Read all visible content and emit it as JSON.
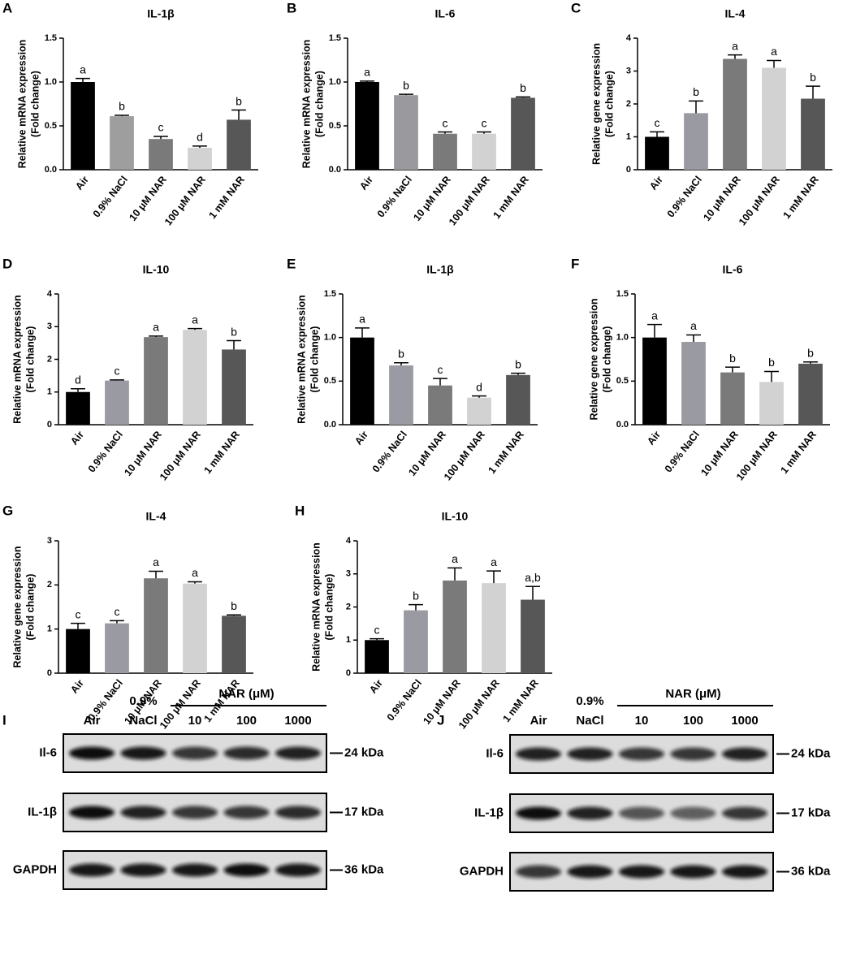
{
  "chart_data": [
    {
      "type": "bar",
      "panel": "A",
      "title": "IL-1β",
      "ylabel": [
        "Relative mRNA expression",
        "(Fold change)"
      ],
      "categories": [
        "Air",
        "0.9% NaCl",
        "10 μM NAR",
        "100 μM NAR",
        "1 mM NAR"
      ],
      "values": [
        1.0,
        0.61,
        0.35,
        0.25,
        0.57
      ],
      "errors": [
        0.04,
        0.01,
        0.03,
        0.02,
        0.11
      ],
      "labels": [
        "a",
        "b",
        "c",
        "d",
        "b"
      ],
      "colors": [
        "#000000",
        "#9e9e9e",
        "#7a7a7a",
        "#d2d2d2",
        "#575757"
      ],
      "ylim": [
        0,
        1.5
      ],
      "yticks": [
        {
          "value": 0,
          "label": "0.0"
        },
        {
          "value": 0.5,
          "label": "0.5"
        },
        {
          "value": 1,
          "label": "1.0"
        },
        {
          "value": 1.5,
          "label": "1.5"
        }
      ]
    },
    {
      "type": "bar",
      "panel": "B",
      "title": "IL-6",
      "ylabel": [
        "Relative mRNA expression",
        "(Fold change)"
      ],
      "categories": [
        "Air",
        "0.9% NaCl",
        "10 μM NAR",
        "100 μM NAR",
        "1 mM NAR"
      ],
      "values": [
        1.0,
        0.85,
        0.41,
        0.41,
        0.82
      ],
      "errors": [
        0.01,
        0.01,
        0.02,
        0.02,
        0.01
      ],
      "labels": [
        "a",
        "b",
        "c",
        "c",
        "b"
      ],
      "colors": [
        "#000000",
        "#9a9a9e",
        "#7a7a7a",
        "#d2d2d2",
        "#575757"
      ],
      "ylim": [
        0,
        1.5
      ],
      "yticks": [
        {
          "value": 0,
          "label": "0.0"
        },
        {
          "value": 0.5,
          "label": "0.5"
        },
        {
          "value": 1,
          "label": "1.0"
        },
        {
          "value": 1.5,
          "label": "1.5"
        }
      ]
    },
    {
      "type": "bar",
      "panel": "C",
      "title": "IL-4",
      "ylabel": [
        "Relative gene expression",
        "(Fold change)"
      ],
      "categories": [
        "Air",
        "0.9% NaCl",
        "10 μM NAR",
        "100 μM NAR",
        "1 mM NAR"
      ],
      "values": [
        1.0,
        1.72,
        3.37,
        3.1,
        2.16
      ],
      "errors": [
        0.15,
        0.37,
        0.12,
        0.22,
        0.38
      ],
      "labels": [
        "c",
        "b",
        "a",
        "a",
        "b"
      ],
      "colors": [
        "#000000",
        "#9a9aa2",
        "#7a7a7a",
        "#d2d2d2",
        "#575757"
      ],
      "ylim": [
        0,
        4
      ],
      "yticks": [
        0,
        1,
        2,
        3,
        4
      ]
    },
    {
      "type": "bar",
      "panel": "D",
      "title": "IL-10",
      "ylabel": [
        "Relative mRNA expression",
        "(Fold change)"
      ],
      "categories": [
        "Air",
        "0.9% NaCl",
        "10 μM NAR",
        "100 μM NAR",
        "1 mM NAR"
      ],
      "values": [
        1.0,
        1.35,
        2.68,
        2.9,
        2.3
      ],
      "errors": [
        0.1,
        0.02,
        0.03,
        0.04,
        0.27
      ],
      "labels": [
        "d",
        "c",
        "a",
        "a",
        "b"
      ],
      "colors": [
        "#000000",
        "#9a9aa2",
        "#7a7a7a",
        "#d2d2d2",
        "#575757"
      ],
      "ylim": [
        0,
        4
      ],
      "yticks": [
        0,
        1,
        2,
        3,
        4
      ]
    },
    {
      "type": "bar",
      "panel": "E",
      "title": "IL-1β",
      "ylabel": [
        "Relative mRNA expression",
        "(Fold change)"
      ],
      "categories": [
        "Air",
        "0.9% NaCl",
        "10 μM NAR",
        "100 μM NAR",
        "1 mM NAR"
      ],
      "values": [
        1.0,
        0.68,
        0.45,
        0.31,
        0.57
      ],
      "errors": [
        0.11,
        0.03,
        0.08,
        0.02,
        0.02
      ],
      "labels": [
        "a",
        "b",
        "c",
        "d",
        "b"
      ],
      "colors": [
        "#000000",
        "#9a9aa2",
        "#7a7a7a",
        "#d2d2d2",
        "#575757"
      ],
      "ylim": [
        0,
        1.5
      ],
      "yticks": [
        {
          "value": 0,
          "label": "0.0"
        },
        {
          "value": 0.5,
          "label": "0.5"
        },
        {
          "value": 1,
          "label": "1.0"
        },
        {
          "value": 1.5,
          "label": "1.5"
        }
      ]
    },
    {
      "type": "bar",
      "panel": "F",
      "title": "IL-6",
      "ylabel": [
        "Relative gene expression",
        "(Fold change)"
      ],
      "categories": [
        "Air",
        "0.9% NaCl",
        "10 μM NAR",
        "100 μM NAR",
        "1 mM NAR"
      ],
      "values": [
        1.0,
        0.95,
        0.6,
        0.49,
        0.7
      ],
      "errors": [
        0.15,
        0.08,
        0.06,
        0.12,
        0.02
      ],
      "labels": [
        "a",
        "a",
        "b",
        "b",
        "b"
      ],
      "colors": [
        "#000000",
        "#9a9aa2",
        "#7a7a7a",
        "#d2d2d2",
        "#575757"
      ],
      "ylim": [
        0,
        1.5
      ],
      "yticks": [
        {
          "value": 0,
          "label": "0.0"
        },
        {
          "value": 0.5,
          "label": "0.5"
        },
        {
          "value": 1,
          "label": "1.0"
        },
        {
          "value": 1.5,
          "label": "1.5"
        }
      ]
    },
    {
      "type": "bar",
      "panel": "G",
      "title": "IL-4",
      "ylabel": [
        "Relative gene expression",
        "(Fold change)"
      ],
      "categories": [
        "Air",
        "0.9% NaCl",
        "10 μM NAR",
        "100 μM NAR",
        "1 mM NAR"
      ],
      "values": [
        1.0,
        1.13,
        2.15,
        2.03,
        1.3
      ],
      "errors": [
        0.13,
        0.06,
        0.16,
        0.04,
        0.02
      ],
      "labels": [
        "c",
        "c",
        "a",
        "a",
        "b"
      ],
      "colors": [
        "#000000",
        "#9a9aa2",
        "#7a7a7a",
        "#d2d2d2",
        "#575757"
      ],
      "ylim": [
        0,
        3
      ],
      "yticks": [
        0,
        1,
        2,
        3
      ]
    },
    {
      "type": "bar",
      "panel": "H",
      "title": "IL-10",
      "ylabel": [
        "Relative mRNA expression",
        "(Fold change)"
      ],
      "categories": [
        "Air",
        "0.9% NaCl",
        "10 μM NAR",
        "100 μM NAR",
        "1 mM NAR"
      ],
      "values": [
        1.0,
        1.9,
        2.8,
        2.72,
        2.22
      ],
      "errors": [
        0.04,
        0.17,
        0.38,
        0.37,
        0.4
      ],
      "labels": [
        "c",
        "b",
        "a",
        "a",
        "a,b"
      ],
      "colors": [
        "#000000",
        "#9a9aa2",
        "#7a7a7a",
        "#d2d2d2",
        "#575757"
      ],
      "ylim": [
        0,
        4
      ],
      "yticks": [
        0,
        1,
        2,
        3,
        4
      ]
    }
  ],
  "blots": [
    {
      "panel": "I",
      "group": "NAR (μM)",
      "lanes": [
        [
          "Air"
        ],
        [
          "0.9%",
          "NaCl"
        ],
        [
          "10"
        ],
        [
          "100"
        ],
        [
          "1000"
        ]
      ],
      "rows": [
        {
          "label": "Il-6",
          "size": "24 kDa"
        },
        {
          "label": "IL-1β",
          "size": "17 kDa"
        },
        {
          "label": "GAPDH",
          "size": "36 kDa"
        }
      ]
    },
    {
      "panel": "J",
      "group": "NAR (μM)",
      "lanes": [
        [
          "Air"
        ],
        [
          "0.9%",
          "NaCl"
        ],
        [
          "10"
        ],
        [
          "100"
        ],
        [
          "1000"
        ]
      ],
      "rows": [
        {
          "label": "Il-6",
          "size": "24 kDa"
        },
        {
          "label": "IL-1β",
          "size": "17 kDa"
        },
        {
          "label": "GAPDH",
          "size": "36 kDa"
        }
      ]
    }
  ]
}
